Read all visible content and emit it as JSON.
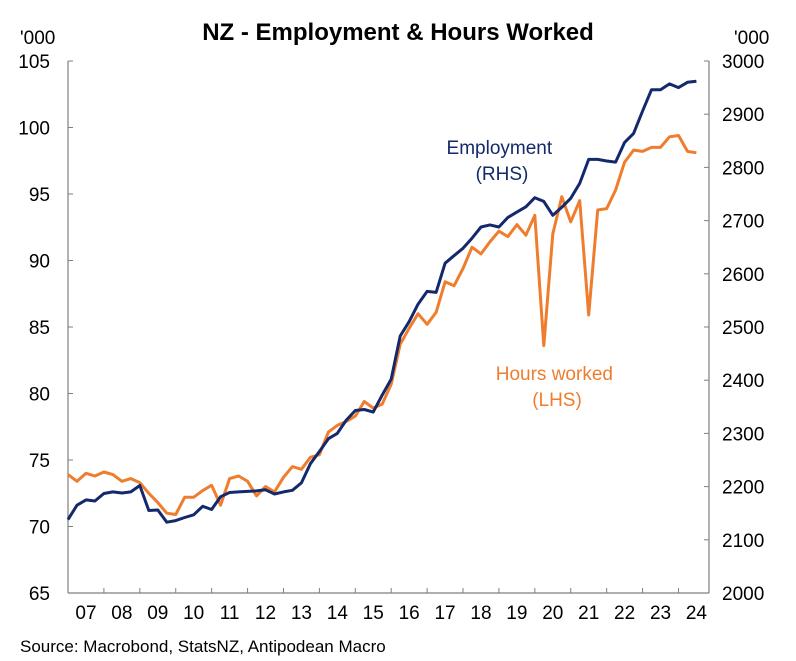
{
  "chart_data": {
    "type": "line",
    "title": "NZ - Employment & Hours Worked",
    "left_axis": {
      "unit": "'000",
      "ylim": [
        65,
        105
      ],
      "ticks": [
        65,
        70,
        75,
        80,
        85,
        90,
        95,
        100,
        105
      ]
    },
    "right_axis": {
      "unit": "'000",
      "ylim": [
        2000,
        3000
      ],
      "ticks": [
        2000,
        2100,
        2200,
        2300,
        2400,
        2500,
        2600,
        2700,
        2800,
        2900,
        3000
      ]
    },
    "x_axis": {
      "labels": [
        "07",
        "08",
        "09",
        "10",
        "11",
        "12",
        "13",
        "14",
        "15",
        "16",
        "17",
        "18",
        "19",
        "20",
        "21",
        "22",
        "23",
        "24"
      ]
    },
    "colors": {
      "employment": "#13296b",
      "hours": "#ef7d2d",
      "axis": "#7f7f7f"
    },
    "grid": false,
    "source": "Source: Macrobond, StatsNZ, Antipodean Macro",
    "series": [
      {
        "name": "Employment",
        "label_lines": [
          "Employment",
          "(RHS)"
        ],
        "axis": "right",
        "x": [
          2007.0,
          2007.25,
          2007.5,
          2007.75,
          2008.0,
          2008.25,
          2008.5,
          2008.75,
          2009.0,
          2009.25,
          2009.5,
          2009.75,
          2010.0,
          2010.25,
          2010.5,
          2010.75,
          2011.0,
          2011.25,
          2011.5,
          2011.75,
          2012.0,
          2012.25,
          2012.5,
          2012.75,
          2013.0,
          2013.25,
          2013.5,
          2013.75,
          2014.0,
          2014.25,
          2014.5,
          2014.75,
          2015.0,
          2015.25,
          2015.5,
          2015.75,
          2016.0,
          2016.25,
          2016.5,
          2016.75,
          2017.0,
          2017.25,
          2017.5,
          2017.75,
          2018.0,
          2018.25,
          2018.5,
          2018.75,
          2019.0,
          2019.25,
          2019.5,
          2019.75,
          2020.0,
          2020.25,
          2020.5,
          2020.75,
          2021.0,
          2021.25,
          2021.5,
          2021.75,
          2022.0,
          2022.25,
          2022.5,
          2022.75,
          2023.0,
          2023.25,
          2023.5,
          2023.75,
          2024.0,
          2024.25,
          2024.5
        ],
        "values": [
          2138,
          2165,
          2175,
          2173,
          2187,
          2190,
          2188,
          2190,
          2202,
          2155,
          2156,
          2133,
          2136,
          2142,
          2147,
          2163,
          2157,
          2181,
          2189,
          2190,
          2191,
          2192,
          2194,
          2186,
          2190,
          2193,
          2207,
          2243,
          2266,
          2290,
          2300,
          2325,
          2343,
          2345,
          2340,
          2372,
          2402,
          2483,
          2510,
          2543,
          2567,
          2565,
          2620,
          2634,
          2648,
          2667,
          2688,
          2692,
          2688,
          2706,
          2716,
          2726,
          2743,
          2736,
          2710,
          2725,
          2742,
          2770,
          2815,
          2815,
          2812,
          2810,
          2847,
          2864,
          2906,
          2946,
          2946,
          2957,
          2950,
          2960,
          2962
        ]
      },
      {
        "name": "Hours worked",
        "label_lines": [
          "Hours worked",
          "(LHS)"
        ],
        "axis": "left",
        "x": [
          2007.0,
          2007.25,
          2007.5,
          2007.75,
          2008.0,
          2008.25,
          2008.5,
          2008.75,
          2009.0,
          2009.25,
          2009.5,
          2009.75,
          2010.0,
          2010.25,
          2010.5,
          2010.75,
          2011.0,
          2011.25,
          2011.5,
          2011.75,
          2012.0,
          2012.25,
          2012.5,
          2012.75,
          2013.0,
          2013.25,
          2013.5,
          2013.75,
          2014.0,
          2014.25,
          2014.5,
          2014.75,
          2015.0,
          2015.25,
          2015.5,
          2015.75,
          2016.0,
          2016.25,
          2016.5,
          2016.75,
          2017.0,
          2017.25,
          2017.5,
          2017.75,
          2018.0,
          2018.25,
          2018.5,
          2018.75,
          2019.0,
          2019.25,
          2019.5,
          2019.75,
          2020.0,
          2020.25,
          2020.5,
          2020.75,
          2021.0,
          2021.25,
          2021.5,
          2021.75,
          2022.0,
          2022.25,
          2022.5,
          2022.75,
          2023.0,
          2023.25,
          2023.5,
          2023.75,
          2024.0,
          2024.25,
          2024.5
        ],
        "values": [
          73.9,
          73.4,
          74.0,
          73.8,
          74.1,
          73.9,
          73.4,
          73.6,
          73.3,
          72.5,
          71.8,
          71.0,
          70.9,
          72.2,
          72.2,
          72.7,
          73.1,
          71.6,
          73.6,
          73.8,
          73.4,
          72.3,
          73.0,
          72.6,
          73.7,
          74.5,
          74.3,
          75.2,
          75.4,
          77.1,
          77.6,
          77.9,
          78.3,
          79.4,
          78.9,
          79.2,
          80.7,
          83.7,
          84.9,
          86.0,
          85.2,
          86.1,
          88.4,
          88.1,
          89.4,
          91.0,
          90.5,
          91.4,
          92.2,
          91.8,
          92.7,
          91.9,
          93.4,
          83.6,
          92.0,
          94.8,
          92.9,
          94.5,
          85.9,
          93.8,
          93.9,
          95.3,
          97.4,
          98.3,
          98.2,
          98.5,
          98.5,
          99.3,
          99.4,
          98.2,
          98.1
        ]
      }
    ]
  }
}
